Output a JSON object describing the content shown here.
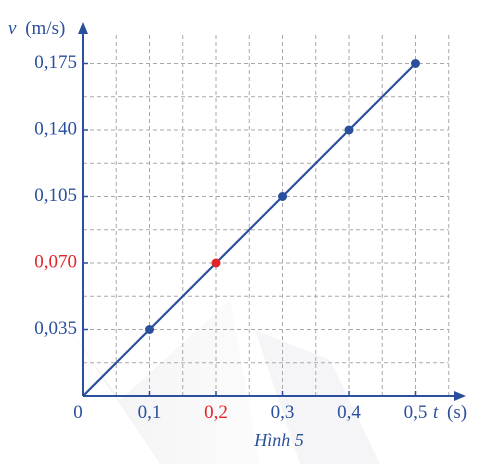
{
  "chart_data": {
    "type": "line",
    "caption": "Hình 5",
    "x_axis": {
      "symbol": "t",
      "unit": "(s)",
      "ticks": [
        0.1,
        0.2,
        0.3,
        0.4,
        0.5
      ],
      "tick_labels": [
        "0,1",
        "0,2",
        "0,3",
        "0,4",
        "0,5"
      ],
      "range": [
        0,
        0.55
      ]
    },
    "y_axis": {
      "symbol": "v",
      "unit": "(m/s)",
      "ticks": [
        0.035,
        0.07,
        0.105,
        0.14,
        0.175
      ],
      "tick_labels": [
        "0,035",
        "0,070",
        "0,105",
        "0,140",
        "0,175"
      ],
      "range": [
        0,
        0.19
      ]
    },
    "origin_label": "0",
    "grid": true,
    "series": [
      {
        "x": [
          0,
          0.1,
          0.2,
          0.3,
          0.4,
          0.5
        ],
        "y": [
          0,
          0.035,
          0.07,
          0.105,
          0.14,
          0.175
        ],
        "color": "#2a4f9c"
      }
    ],
    "points": [
      {
        "x": 0.1,
        "y": 0.035,
        "color": "#2a4f9c"
      },
      {
        "x": 0.2,
        "y": 0.07,
        "color": "#e0242a"
      },
      {
        "x": 0.3,
        "y": 0.105,
        "color": "#2a4f9c"
      },
      {
        "x": 0.4,
        "y": 0.14,
        "color": "#2a4f9c"
      },
      {
        "x": 0.5,
        "y": 0.175,
        "color": "#2a4f9c"
      }
    ],
    "highlight": {
      "x_tick_index": 1,
      "y_tick_index": 1,
      "color": "#e0242a"
    },
    "colors": {
      "axis": "#2a4f9c",
      "text": "#2a4f9c",
      "grid": "#a9a9a9",
      "highlight": "#e0242a"
    }
  }
}
